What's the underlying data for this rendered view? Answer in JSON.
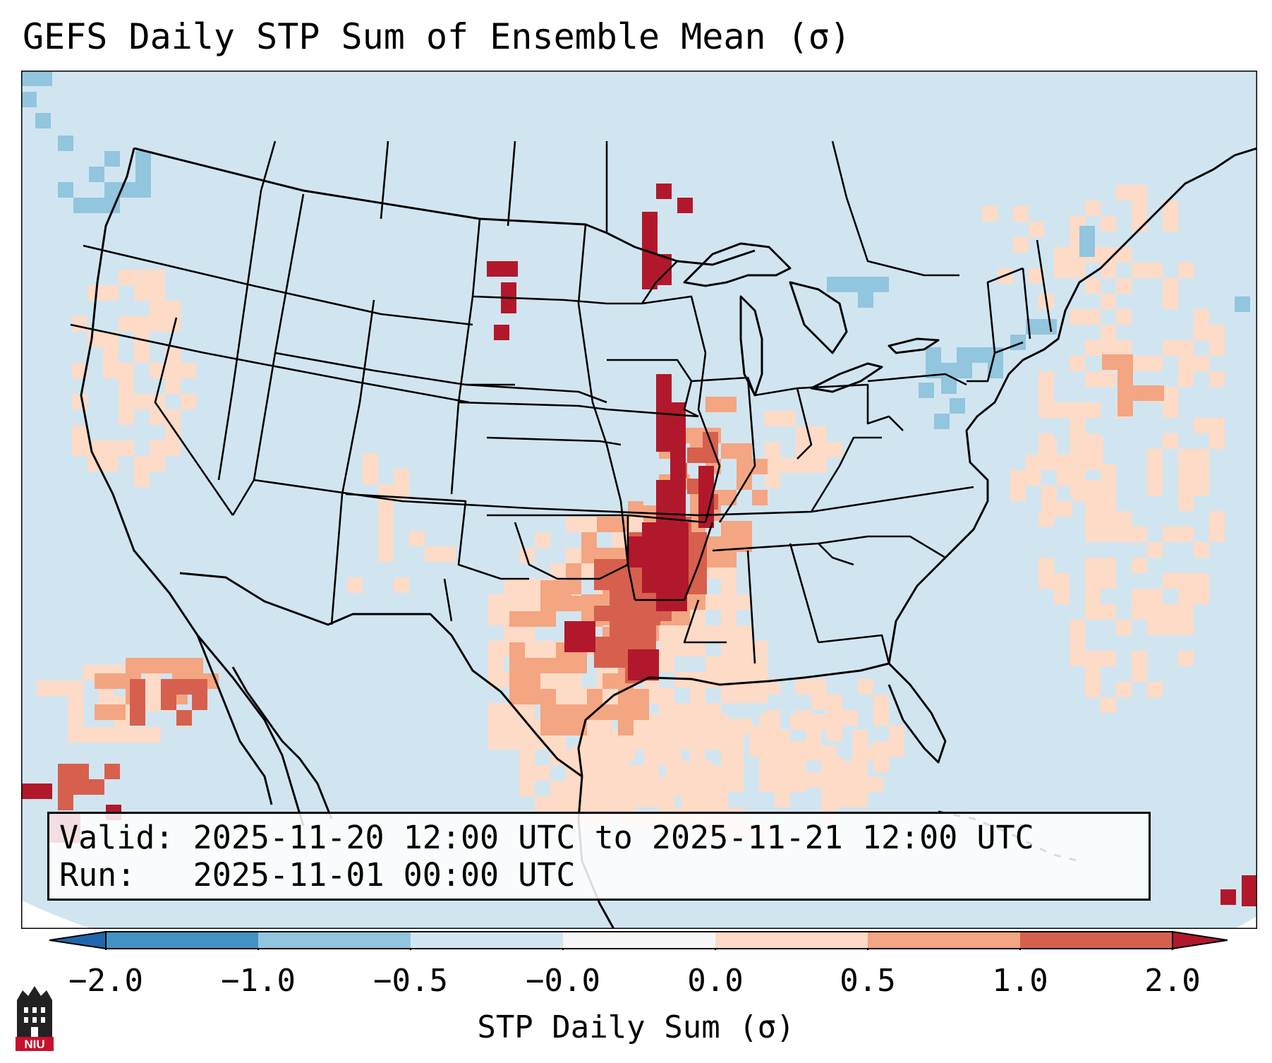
{
  "title": "GEFS Daily STP Sum of Ensemble Mean (σ)",
  "info": {
    "valid_line": "Valid: 2025-11-20 12:00 UTC to 2025-11-21 12:00 UTC",
    "run_line": "Run:   2025-11-01 00:00 UTC"
  },
  "colorbar": {
    "label": "STP Daily Sum (σ)",
    "ticks": [
      "−2.0",
      "−1.0",
      "−0.5",
      "−0.0",
      "0.0",
      "0.5",
      "1.0",
      "2.0"
    ],
    "bins": [
      {
        "range": "< -2.0",
        "color": "#2166ac"
      },
      {
        "range": "-2.0 to -1.0",
        "color": "#4393c3"
      },
      {
        "range": "-1.0 to -0.5",
        "color": "#92c5de"
      },
      {
        "range": "-0.5 to -0.0",
        "color": "#d1e5f0"
      },
      {
        "range": "-0.0 to 0.0",
        "color": "#f7f7f7"
      },
      {
        "range": "0.0 to 0.5",
        "color": "#fddbc7"
      },
      {
        "range": "0.5 to 1.0",
        "color": "#f4a582"
      },
      {
        "range": "1.0 to 2.0",
        "color": "#d6604d"
      },
      {
        "range": "> 2.0",
        "color": "#b2182b"
      }
    ]
  },
  "logo_text": "NIU",
  "map_background": "#d1e5f0"
}
